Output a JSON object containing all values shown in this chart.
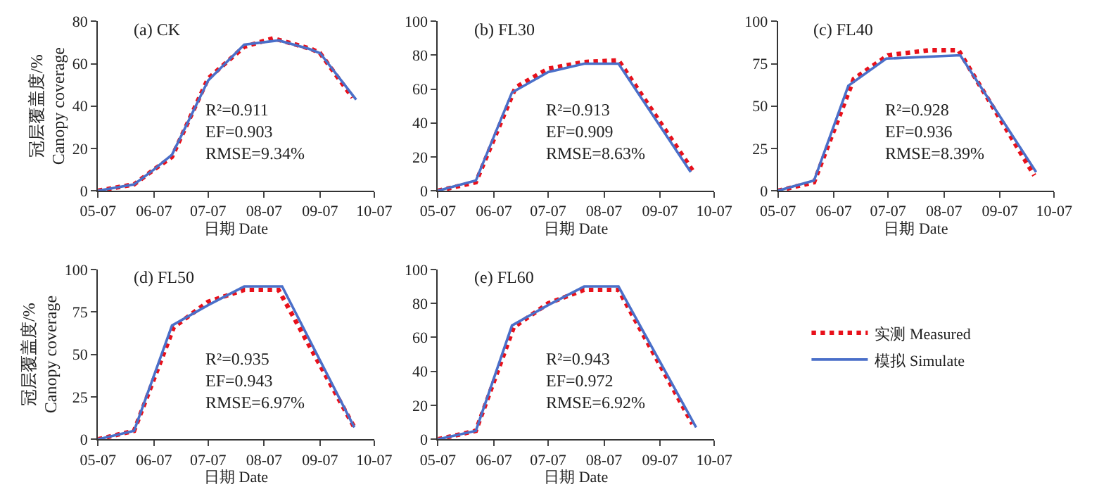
{
  "chart_data": [
    {
      "type": "line",
      "title": "(a) CK",
      "xlabel": "日期 Date",
      "ylabel": "冠层覆盖度/%\nCanopy coverage",
      "xlim": [
        "--05-07",
        "--10-07"
      ],
      "xticks": [
        {
          "value": "--05-07",
          "label": "05-07"
        },
        {
          "value": "--06-07",
          "label": "06-07"
        },
        {
          "value": "--07-07",
          "label": "07-07"
        },
        {
          "value": "--08-07",
          "label": "08-07"
        },
        {
          "value": "--09-07",
          "label": "09-07"
        },
        {
          "value": "--10-07",
          "label": "10-07"
        }
      ],
      "ylim": [
        0,
        80
      ],
      "yticks": [
        0,
        20,
        40,
        60,
        80
      ],
      "marker": "none",
      "annotations": [
        "R²=0.911\nEF=0.903\nRMSE=9.34%"
      ],
      "series": [
        {
          "color": "#e8101a",
          "line_style": "dotted",
          "x": [
            "--05-07",
            "--05-27",
            "--06-07",
            "--06-17",
            "--07-07",
            "--07-27",
            "--08-12",
            "--09-02",
            "--09-07",
            "--09-25"
          ],
          "values": [
            0,
            3,
            10,
            16,
            53,
            68,
            72,
            67,
            65,
            44
          ]
        },
        {
          "color": "#4a6fc9",
          "line_style": "solid",
          "x": [
            "--05-07",
            "--05-27",
            "--06-07",
            "--06-17",
            "--07-07",
            "--07-27",
            "--08-15",
            "--09-01",
            "--09-07",
            "--09-27"
          ],
          "values": [
            0,
            3,
            10,
            17,
            52,
            69,
            71,
            67,
            65,
            43
          ]
        }
      ]
    },
    {
      "type": "line",
      "title": "(b) FL30",
      "xlabel": "日期 Date",
      "xlim": [
        "--05-07",
        "--10-07"
      ],
      "xticks": [
        {
          "value": "--05-07",
          "label": "05-07"
        },
        {
          "value": "--06-07",
          "label": "06-07"
        },
        {
          "value": "--07-07",
          "label": "07-07"
        },
        {
          "value": "--08-07",
          "label": "08-07"
        },
        {
          "value": "--09-07",
          "label": "09-07"
        },
        {
          "value": "--10-07",
          "label": "10-07"
        }
      ],
      "ylim": [
        0,
        100
      ],
      "yticks": [
        0,
        20,
        40,
        60,
        80,
        100
      ],
      "marker": "none",
      "annotations": [
        "R²=0.913\nEF=0.909\nRMSE=8.63%"
      ],
      "series": [
        {
          "color": "#e8101a",
          "line_style": "dotted",
          "x": [
            "--05-07",
            "--05-28",
            "--06-19",
            "--07-07",
            "--07-27",
            "--08-15",
            "--09-25"
          ],
          "values": [
            0,
            5,
            61,
            72,
            76,
            77,
            12
          ]
        },
        {
          "color": "#4a6fc9",
          "line_style": "solid",
          "x": [
            "--05-07",
            "--05-28",
            "--06-17",
            "--07-07",
            "--07-27",
            "--08-15",
            "--09-24"
          ],
          "values": [
            0,
            6,
            58,
            70,
            75,
            75,
            11
          ]
        }
      ]
    },
    {
      "type": "line",
      "title": "(c) FL40",
      "xlabel": "日期 Date",
      "xlim": [
        "--05-07",
        "--10-07"
      ],
      "xticks": [
        {
          "value": "--05-07",
          "label": "05-07"
        },
        {
          "value": "--06-07",
          "label": "06-07"
        },
        {
          "value": "--07-07",
          "label": "07-07"
        },
        {
          "value": "--08-07",
          "label": "08-07"
        },
        {
          "value": "--09-07",
          "label": "09-07"
        },
        {
          "value": "--10-07",
          "label": "10-07"
        }
      ],
      "ylim": [
        0,
        100
      ],
      "yticks": [
        0,
        25,
        50,
        75,
        100
      ],
      "marker": "none",
      "annotations": [
        "R²=0.928\nEF=0.936\nRMSE=8.39%"
      ],
      "series": [
        {
          "color": "#e8101a",
          "line_style": "dotted",
          "x": [
            "--05-07",
            "--05-27",
            "--06-18",
            "--07-07",
            "--07-30",
            "--08-15",
            "--09-26"
          ],
          "values": [
            0,
            5,
            66,
            80,
            83,
            83,
            9
          ]
        },
        {
          "color": "#4a6fc9",
          "line_style": "solid",
          "x": [
            "--05-07",
            "--05-27",
            "--06-15",
            "--07-06",
            "--08-16",
            "--09-27"
          ],
          "values": [
            0,
            6,
            62,
            78,
            80,
            11
          ]
        }
      ]
    },
    {
      "type": "line",
      "title": "(d) FL50",
      "xlabel": "日期 Date",
      "ylabel": "冠层覆盖度/%\nCanopy coverage",
      "xlim": [
        "--05-07",
        "--10-07"
      ],
      "xticks": [
        {
          "value": "--05-07",
          "label": "05-07"
        },
        {
          "value": "--06-07",
          "label": "06-07"
        },
        {
          "value": "--07-07",
          "label": "07-07"
        },
        {
          "value": "--08-07",
          "label": "08-07"
        },
        {
          "value": "--09-07",
          "label": "09-07"
        },
        {
          "value": "--10-07",
          "label": "10-07"
        }
      ],
      "ylim": [
        0,
        100
      ],
      "yticks": [
        0,
        25,
        50,
        75,
        100
      ],
      "marker": "none",
      "annotations": [
        "R²=0.935\nEF=0.943\nRMSE=6.97%"
      ],
      "series": [
        {
          "color": "#e8101a",
          "line_style": "dotted",
          "x": [
            "--05-07",
            "--05-27",
            "--06-18",
            "--07-07",
            "--07-27",
            "--08-15",
            "--09-26"
          ],
          "values": [
            0,
            5,
            66,
            81,
            88,
            88,
            7
          ]
        },
        {
          "color": "#4a6fc9",
          "line_style": "solid",
          "x": [
            "--05-07",
            "--05-27",
            "--06-17",
            "--07-07",
            "--07-27",
            "--08-17",
            "--09-26"
          ],
          "values": [
            0,
            5,
            67,
            79,
            90,
            90,
            7
          ]
        }
      ]
    },
    {
      "type": "line",
      "title": "(e) FL60",
      "xlabel": "日期 Date",
      "xlim": [
        "--05-07",
        "--10-07"
      ],
      "xticks": [
        {
          "value": "--05-07",
          "label": "05-07"
        },
        {
          "value": "--06-07",
          "label": "06-07"
        },
        {
          "value": "--07-07",
          "label": "07-07"
        },
        {
          "value": "--08-07",
          "label": "08-07"
        },
        {
          "value": "--09-07",
          "label": "09-07"
        },
        {
          "value": "--10-07",
          "label": "10-07"
        }
      ],
      "ylim": [
        0,
        100
      ],
      "yticks": [
        0,
        20,
        40,
        60,
        80,
        100
      ],
      "legend": "right",
      "marker": "none",
      "annotations": [
        "R²=0.943\nEF=0.972\nRMSE=6.92%"
      ],
      "series": [
        {
          "name": "实测 Measured",
          "color": "#e8101a",
          "line_style": "dotted",
          "x": [
            "--05-07",
            "--05-28",
            "--06-18",
            "--07-07",
            "--07-27",
            "--08-15",
            "--09-25"
          ],
          "values": [
            0,
            5,
            66,
            80,
            88,
            88,
            9
          ]
        },
        {
          "name": "模拟 Simulate",
          "color": "#4a6fc9",
          "line_style": "solid",
          "x": [
            "--05-07",
            "--05-28",
            "--06-17",
            "--07-07",
            "--07-27",
            "--08-15",
            "--09-27"
          ],
          "values": [
            0,
            5,
            67,
            79,
            90,
            90,
            7
          ]
        }
      ]
    }
  ]
}
